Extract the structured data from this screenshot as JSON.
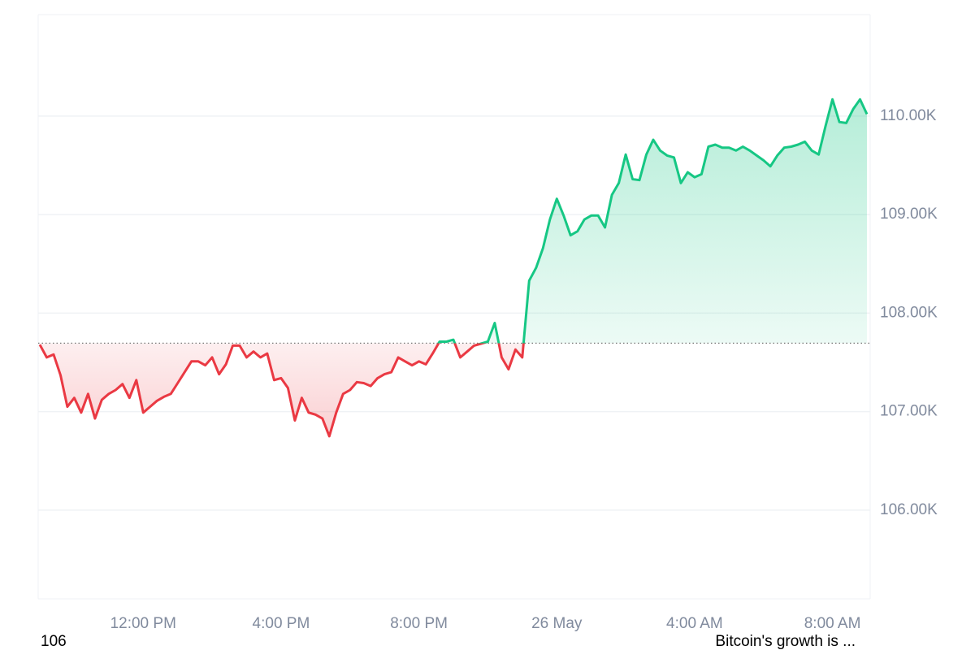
{
  "chart_data": {
    "type": "line",
    "categories": [
      null,
      null,
      null,
      null,
      null,
      null,
      null,
      null,
      null,
      null,
      null,
      null,
      null,
      null,
      null,
      "12:00 PM",
      null,
      null,
      null,
      null,
      null,
      null,
      null,
      null,
      null,
      null,
      null,
      null,
      null,
      null,
      null,
      null,
      null,
      null,
      null,
      "4:00 PM",
      null,
      null,
      null,
      null,
      null,
      null,
      null,
      null,
      null,
      null,
      null,
      null,
      null,
      null,
      null,
      null,
      null,
      null,
      null,
      "8:00 PM",
      null,
      null,
      null,
      null,
      null,
      null,
      null,
      null,
      null,
      null,
      null,
      null,
      null,
      null,
      null,
      null,
      null,
      null,
      null,
      "26 May",
      null,
      null,
      null,
      null,
      null,
      null,
      null,
      null,
      null,
      null,
      null,
      null,
      null,
      null,
      null,
      null,
      null,
      null,
      null,
      "4:00 AM",
      null,
      null,
      null,
      null,
      null,
      null,
      null,
      null,
      null,
      null,
      null,
      null,
      null,
      null,
      null,
      null,
      null,
      null,
      null,
      "8:00 AM",
      null,
      null,
      null,
      null,
      null
    ],
    "values": [
      107680,
      107550,
      107580,
      107370,
      107050,
      107140,
      106990,
      107180,
      106930,
      107120,
      107180,
      107220,
      107280,
      107140,
      107320,
      106990,
      107050,
      107110,
      107150,
      107180,
      107290,
      107400,
      107510,
      107510,
      107470,
      107550,
      107380,
      107480,
      107670,
      107670,
      107550,
      107610,
      107550,
      107590,
      107320,
      107340,
      107240,
      106910,
      107140,
      106990,
      106970,
      106930,
      106750,
      106990,
      107180,
      107220,
      107300,
      107290,
      107260,
      107340,
      107380,
      107400,
      107550,
      107510,
      107470,
      107510,
      107480,
      107590,
      107710,
      107710,
      107730,
      107550,
      107610,
      107670,
      107690,
      107710,
      107900,
      107550,
      107430,
      107630,
      107550,
      108330,
      108460,
      108660,
      108950,
      109160,
      108990,
      108790,
      108830,
      108950,
      108990,
      108990,
      108870,
      109200,
      109320,
      109610,
      109360,
      109350,
      109610,
      109760,
      109650,
      109600,
      109580,
      109320,
      109430,
      109380,
      109410,
      109690,
      109710,
      109680,
      109680,
      109650,
      109690,
      109650,
      109600,
      109550,
      109490,
      109600,
      109680,
      109690,
      109710,
      109740,
      109650,
      109610,
      109900,
      110170,
      109940,
      109930,
      110070,
      110170,
      110020
    ],
    "baseline": 107695,
    "up_color": "#16c784",
    "down_color": "#ea3943",
    "ylim": [
      105100,
      111030
    ],
    "yticks": [
      {
        "value": 106000,
        "label": "106.00K"
      },
      {
        "value": 107000,
        "label": "107.00K"
      },
      {
        "value": 108000,
        "label": "108.00K"
      },
      {
        "value": 109000,
        "label": "109.00K"
      },
      {
        "value": 110000,
        "label": "110.00K"
      }
    ],
    "grid": true,
    "footer_left": "106",
    "footer_right": "Bitcoin's growth is ..."
  }
}
